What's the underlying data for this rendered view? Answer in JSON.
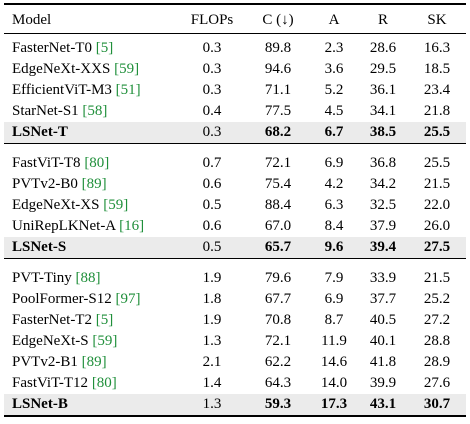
{
  "table": {
    "header": [
      "Model",
      "FLOPs",
      "C (↓)",
      "A",
      "R",
      "SK"
    ],
    "groups": [
      {
        "rows": [
          {
            "model": "FasterNet-T0",
            "cite": "[5]",
            "cells": [
              "0.3",
              "89.8",
              "2.3",
              "28.6",
              "16.3"
            ]
          },
          {
            "model": "EdgeNeXt-XXS",
            "cite": "[59]",
            "cells": [
              "0.3",
              "94.6",
              "3.6",
              "29.5",
              "18.5"
            ]
          },
          {
            "model": "EfficientViT-M3",
            "cite": "[51]",
            "cells": [
              "0.3",
              "71.1",
              "5.2",
              "36.1",
              "23.4"
            ]
          },
          {
            "model": "StarNet-S1",
            "cite": "[58]",
            "cells": [
              "0.4",
              "77.5",
              "4.5",
              "34.1",
              "21.8"
            ]
          },
          {
            "model": "LSNet-T",
            "cells": [
              "0.3",
              "68.2",
              "6.7",
              "38.5",
              "25.5"
            ]
          }
        ]
      },
      {
        "rows": [
          {
            "model": "FastViT-T8",
            "cite": "[80]",
            "cells": [
              "0.7",
              "72.1",
              "6.9",
              "36.8",
              "25.5"
            ]
          },
          {
            "model": "PVTv2-B0",
            "cite": "[89]",
            "cells": [
              "0.6",
              "75.4",
              "4.2",
              "34.2",
              "21.5"
            ]
          },
          {
            "model": "EdgeNeXt-XS",
            "cite": "[59]",
            "cells": [
              "0.5",
              "88.4",
              "6.3",
              "32.5",
              "22.0"
            ]
          },
          {
            "model": "UniRepLKNet-A",
            "cite": "[16]",
            "cells": [
              "0.6",
              "67.0",
              "8.4",
              "37.9",
              "26.0"
            ]
          },
          {
            "model": "LSNet-S",
            "cells": [
              "0.5",
              "65.7",
              "9.6",
              "39.4",
              "27.5"
            ]
          }
        ]
      },
      {
        "rows": [
          {
            "model": "PVT-Tiny",
            "cite": "[88]",
            "cells": [
              "1.9",
              "79.6",
              "7.9",
              "33.9",
              "21.5"
            ]
          },
          {
            "model": "PoolFormer-S12",
            "cite": "[97]",
            "cells": [
              "1.8",
              "67.7",
              "6.9",
              "37.7",
              "25.2"
            ]
          },
          {
            "model": "FasterNet-T2",
            "cite": "[5]",
            "cells": [
              "1.9",
              "70.8",
              "8.7",
              "40.5",
              "27.2"
            ]
          },
          {
            "model": "EdgeNeXt-S",
            "cite": "[59]",
            "cells": [
              "1.3",
              "72.1",
              "11.9",
              "40.1",
              "28.8"
            ]
          },
          {
            "model": "PVTv2-B1",
            "cite": "[89]",
            "cells": [
              "2.1",
              "62.2",
              "14.6",
              "41.8",
              "28.9"
            ]
          },
          {
            "model": "FastViT-T12",
            "cite": "[80]",
            "cells": [
              "1.4",
              "64.3",
              "14.0",
              "39.9",
              "27.6"
            ]
          },
          {
            "model": "LSNet-B",
            "cells": [
              "1.3",
              "59.3",
              "17.3",
              "43.1",
              "30.7"
            ]
          }
        ]
      }
    ]
  }
}
